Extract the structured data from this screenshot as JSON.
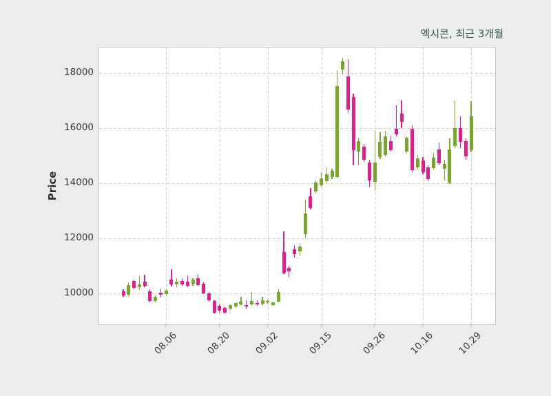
{
  "chart_data": {
    "type": "candlestick",
    "title": "엑시콘, 최근 3개월",
    "ylabel": "Price",
    "xlabel": "",
    "legend": null,
    "grid": "dashed",
    "ylim": [
      8870,
      18930
    ],
    "y_ticks": [
      10000,
      12000,
      14000,
      16000,
      18000
    ],
    "y_tick_labels": [
      "10000",
      "12000",
      "14000",
      "16000",
      "18000"
    ],
    "x_tick_labels": [
      "08.06",
      "08.20",
      "09.02",
      "09.15",
      "09.26",
      "10.16",
      "10.29"
    ],
    "x_tick_indices": [
      8,
      18,
      27,
      37,
      47,
      56,
      65
    ],
    "up_color": "#79a62b",
    "down_color": "#e01f8e",
    "candles_format": [
      "open",
      "high",
      "low",
      "close"
    ],
    "candles": [
      [
        10080,
        10150,
        9880,
        9930
      ],
      [
        9950,
        10400,
        9900,
        10300
      ],
      [
        10450,
        10500,
        10150,
        10190
      ],
      [
        10230,
        10630,
        10130,
        10330
      ],
      [
        10430,
        10680,
        10220,
        10260
      ],
      [
        10060,
        10150,
        9680,
        9710
      ],
      [
        9720,
        9920,
        9680,
        9870
      ],
      [
        10010,
        10180,
        9850,
        9940
      ],
      [
        9975,
        10150,
        9920,
        10100
      ],
      [
        10500,
        10880,
        10250,
        10310
      ],
      [
        10330,
        10550,
        10230,
        10430
      ],
      [
        10450,
        10560,
        10280,
        10330
      ],
      [
        10430,
        10660,
        10220,
        10260
      ],
      [
        10340,
        10560,
        10280,
        10510
      ],
      [
        10560,
        10690,
        10270,
        10300
      ],
      [
        10340,
        10400,
        9970,
        10000
      ],
      [
        10000,
        10050,
        9700,
        9750
      ],
      [
        9710,
        9750,
        9270,
        9300
      ],
      [
        9550,
        9600,
        9290,
        9370
      ],
      [
        9460,
        9520,
        9270,
        9300
      ],
      [
        9450,
        9600,
        9400,
        9580
      ],
      [
        9520,
        9680,
        9480,
        9640
      ],
      [
        9600,
        9880,
        9560,
        9700
      ],
      [
        9560,
        9750,
        9420,
        9530
      ],
      [
        9600,
        10050,
        9540,
        9720
      ],
      [
        9650,
        9740,
        9550,
        9610
      ],
      [
        9620,
        9870,
        9560,
        9750
      ],
      [
        9660,
        9780,
        9620,
        9730
      ],
      [
        9580,
        9700,
        9540,
        9660
      ],
      [
        9700,
        10180,
        9660,
        10050
      ],
      [
        11510,
        12260,
        10700,
        10760
      ],
      [
        10930,
        10990,
        10580,
        10800
      ],
      [
        11590,
        11760,
        11310,
        11430
      ],
      [
        11510,
        11810,
        11380,
        11690
      ],
      [
        12140,
        13400,
        12010,
        12890
      ],
      [
        13520,
        13820,
        13050,
        13100
      ],
      [
        13700,
        14100,
        13620,
        14030
      ],
      [
        13930,
        14400,
        13850,
        14180
      ],
      [
        14080,
        14580,
        14020,
        14330
      ],
      [
        14230,
        14520,
        14150,
        14460
      ],
      [
        14230,
        18100,
        14180,
        17520
      ],
      [
        18120,
        18560,
        17950,
        18440
      ],
      [
        17880,
        18500,
        16560,
        16680
      ],
      [
        17120,
        17250,
        14650,
        15210
      ],
      [
        15160,
        15660,
        14660,
        15540
      ],
      [
        15330,
        15430,
        14780,
        14860
      ],
      [
        14740,
        14860,
        13860,
        14110
      ],
      [
        14050,
        15900,
        13730,
        14740
      ],
      [
        14950,
        15850,
        14880,
        15500
      ],
      [
        15030,
        15910,
        14980,
        15710
      ],
      [
        15540,
        15740,
        15150,
        15210
      ],
      [
        15990,
        16840,
        15700,
        15790
      ],
      [
        16540,
        17000,
        16000,
        16220
      ],
      [
        15160,
        15700,
        15100,
        15660
      ],
      [
        15990,
        16100,
        14400,
        14480
      ],
      [
        14580,
        15030,
        14500,
        14910
      ],
      [
        14830,
        14940,
        14330,
        14400
      ],
      [
        14580,
        14650,
        14080,
        14150
      ],
      [
        14560,
        15100,
        14490,
        14930
      ],
      [
        15230,
        15480,
        14660,
        14730
      ],
      [
        14530,
        14860,
        14100,
        14710
      ],
      [
        14030,
        15620,
        13980,
        15240
      ],
      [
        15340,
        17000,
        15280,
        16000
      ],
      [
        16000,
        16420,
        15280,
        15500
      ],
      [
        15540,
        15640,
        14860,
        14980
      ],
      [
        15200,
        16990,
        15120,
        16430
      ]
    ]
  }
}
